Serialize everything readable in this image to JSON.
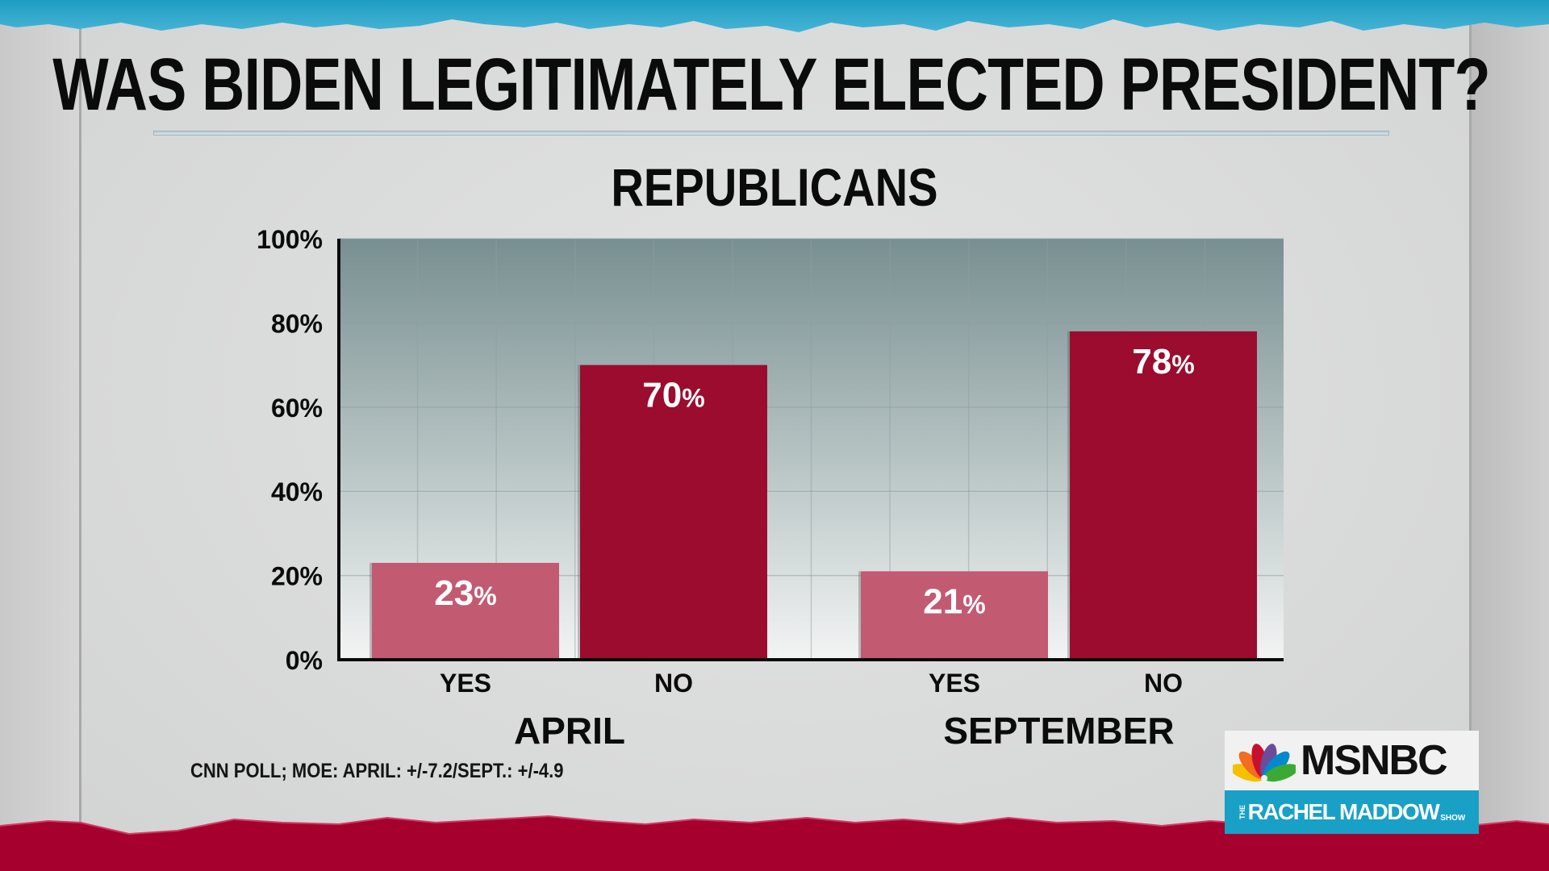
{
  "header": {
    "title": "WAS BIDEN LEGITIMATELY ELECTED PRESIDENT?",
    "subtitle": "REPUBLICANS"
  },
  "footnote": "CNN POLL; MOE: APRIL: +/-7.2/SEPT.: +/-4.9",
  "logo": {
    "network": "MSNBC",
    "show_prefix": "THE",
    "show_name": "RACHEL MADDOW",
    "show_suffix": "SHOW"
  },
  "colors": {
    "yes_bar": "#c25a72",
    "no_bar": "#9b0c2e",
    "plot_top": "#788f91",
    "plot_bottom": "#f3f4f4",
    "top_strip": "#2aa6c9",
    "bottom_strip": "#a6002f"
  },
  "chart_data": {
    "type": "bar",
    "title": "WAS BIDEN LEGITIMATELY ELECTED PRESIDENT?",
    "subtitle": "REPUBLICANS",
    "xlabel": "",
    "ylabel": "",
    "ylim": [
      0,
      100
    ],
    "yticks": [
      0,
      20,
      40,
      60,
      80,
      100
    ],
    "ytick_labels": [
      "0%",
      "20%",
      "40%",
      "60%",
      "80%",
      "100%"
    ],
    "grid": true,
    "groups": [
      {
        "name": "APRIL",
        "bars": [
          {
            "category": "YES",
            "value": 23,
            "label_num": "23",
            "label_unit": "%"
          },
          {
            "category": "NO",
            "value": 70,
            "label_num": "70",
            "label_unit": "%"
          }
        ]
      },
      {
        "name": "SEPTEMBER",
        "bars": [
          {
            "category": "YES",
            "value": 21,
            "label_num": "21",
            "label_unit": "%"
          },
          {
            "category": "NO",
            "value": 78,
            "label_num": "78",
            "label_unit": "%"
          }
        ]
      }
    ]
  }
}
